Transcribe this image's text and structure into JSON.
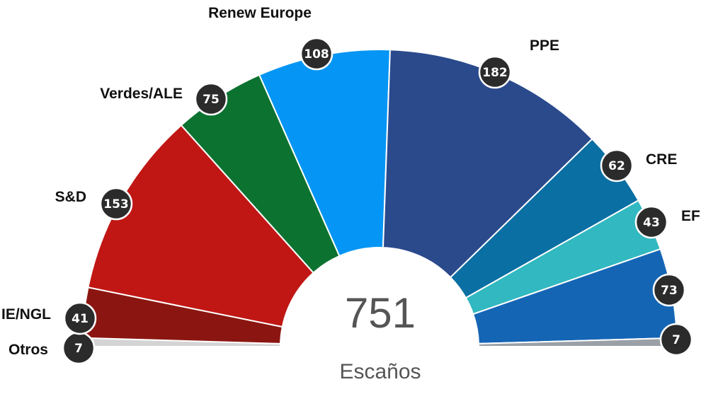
{
  "chart_data": {
    "type": "parliament",
    "total": "751",
    "total_label": "Escaños",
    "series": [
      {
        "name": "Otros",
        "value": 7,
        "color": "#d4d4d4"
      },
      {
        "name": "IE/NGL",
        "value": 41,
        "color": "#8b1611"
      },
      {
        "name": "S&D",
        "value": 153,
        "color": "#c01715"
      },
      {
        "name": "Verdes/ALE",
        "value": 75,
        "color": "#0c7230"
      },
      {
        "name": "Renew Europe",
        "value": 108,
        "color": "#0596f5"
      },
      {
        "name": "PPE",
        "value": 182,
        "color": "#2a4a8c"
      },
      {
        "name": "CRE",
        "value": 62,
        "color": "#0a6fa3"
      },
      {
        "name": "EF",
        "value": 43,
        "color": "#31b8c0"
      },
      {
        "name": "",
        "value": 73,
        "color": "#1565b5"
      },
      {
        "name": "",
        "value": 7,
        "color": "#9aa0a6"
      }
    ]
  }
}
